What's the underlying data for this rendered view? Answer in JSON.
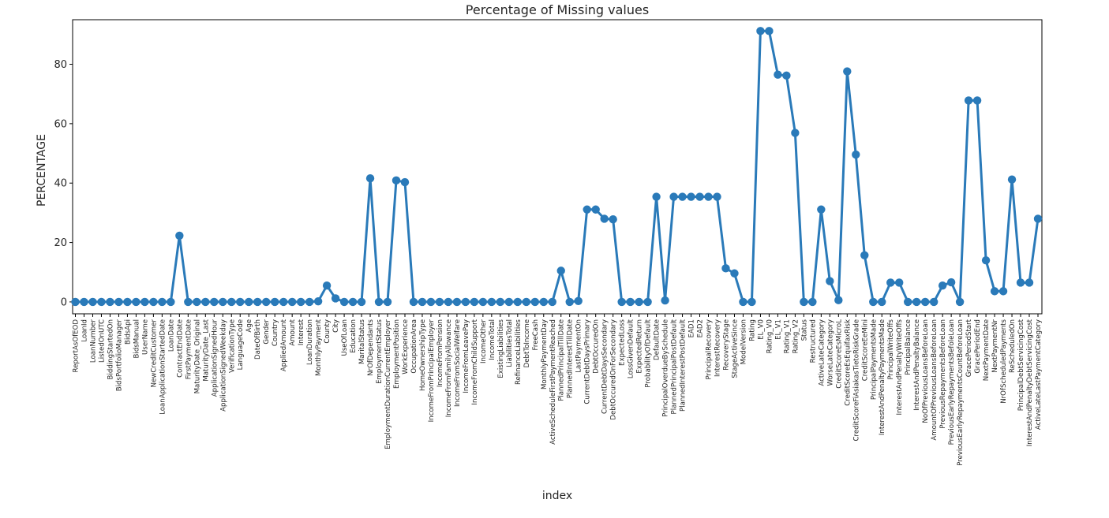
{
  "chart_data": {
    "type": "line",
    "title": "Percentage of Missing values",
    "xlabel": "index",
    "ylabel": "PERCENTAGE",
    "ylim": [
      -4,
      95
    ],
    "yticks": [
      0,
      20,
      40,
      60,
      80
    ],
    "grid": false,
    "markers": true,
    "line_color": "#2a7ab9",
    "categories": [
      "ReportAsOfEOD",
      "LoanId",
      "LoanNumber",
      "ListedOnUTC",
      "BiddingStartedOn",
      "BidsPortfolioManager",
      "BidsApi",
      "BidsManual",
      "UserName",
      "NewCreditCustomer",
      "LoanApplicationStartedDate",
      "LoanDate",
      "ContractEndDate",
      "FirstPaymentDate",
      "MaturityDate_Original",
      "MaturityDate_Last",
      "ApplicationSignedHour",
      "ApplicationSignedWeekday",
      "VerificationType",
      "LanguageCode",
      "Age",
      "DateOfBirth",
      "Gender",
      "Country",
      "AppliedAmount",
      "Amount",
      "Interest",
      "LoanDuration",
      "MonthlyPayment",
      "County",
      "City",
      "UseOfLoan",
      "Education",
      "MaritalStatus",
      "NrOfDependants",
      "EmploymentStatus",
      "EmploymentDurationCurrentEmployer",
      "EmploymentPosition",
      "WorkExperience",
      "OccupationArea",
      "HomeOwnershipType",
      "IncomeFromPrincipalEmployer",
      "IncomeFromPension",
      "IncomeFromFamilyAllowance",
      "IncomeFromSocialWelfare",
      "IncomeFromLeavePay",
      "IncomeFromChildSupport",
      "IncomeOther",
      "IncomeTotal",
      "ExistingLiabilities",
      "LiabilitiesTotal",
      "RefinanceLiabilities",
      "DebtToIncome",
      "FreeCash",
      "MonthlyPaymentDay",
      "ActiveScheduleFirstPaymentReached",
      "PlannedPrincipalTillDate",
      "PlannedInterestTillDate",
      "LastPaymentOn",
      "CurrentDebtDaysPrimary",
      "DebtOccuredOn",
      "CurrentDebtDaysSecondary",
      "DebtOccuredOnForSecondary",
      "ExpectedLoss",
      "LossGivenDefault",
      "ExpectedReturn",
      "ProbabilityOfDefault",
      "DefaultDate",
      "PrincipalOverdueBySchedule",
      "PlannedPrincipalPostDefault",
      "PlannedInterestPostDefault",
      "EAD1",
      "EAD2",
      "PrincipalRecovery",
      "InterestRecovery",
      "RecoveryStage",
      "StageActiveSince",
      "ModelVersion",
      "Rating",
      "EL_V0",
      "Rating_V0",
      "EL_V1",
      "Rating_V1",
      "Rating_V2",
      "Status",
      "Restructured",
      "ActiveLateCategory",
      "WorseLateCategory",
      "CreditScoreEsMicroL",
      "CreditScoreEsEquifaxRisk",
      "CreditScoreFiAsiakasTietoRiskGrade",
      "CreditScoreEeMini",
      "PrincipalPaymentsMade",
      "InterestAndPenaltyPaymentsMade",
      "PrincipalWriteOffs",
      "InterestAndPenaltyWriteOffs",
      "PrincipalBalance",
      "InterestAndPenaltyBalance",
      "NoOfPreviousLoansBeforeLoan",
      "AmountOfPreviousLoansBeforeLoan",
      "PreviousRepaymentsBeforeLoan",
      "PreviousEarlyRepaymentsBefoleLoan",
      "PreviousEarlyRepaymentsCountBeforeLoan",
      "GracePeriodStart",
      "GracePeriodEnd",
      "NextPaymentDate",
      "NextPaymentNr",
      "NrOfScheduledPayments",
      "ReScheduledOn",
      "PrincipalDebtServicingCost",
      "InterestAndPenaltyDebtServicingCost",
      "ActiveLateLastPaymentCategory"
    ],
    "values": [
      0,
      0,
      0,
      0,
      0,
      0,
      0,
      0,
      0,
      0,
      0,
      0,
      22.3,
      0,
      0,
      0,
      0,
      0,
      0,
      0,
      0,
      0,
      0,
      0,
      0,
      0,
      0,
      0,
      0.2,
      5.5,
      1.2,
      0,
      0,
      0,
      41.6,
      0,
      0,
      40.9,
      40.3,
      0,
      0,
      0,
      0,
      0,
      0,
      0,
      0,
      0,
      0,
      0,
      0,
      0,
      0,
      0,
      0,
      0,
      10.5,
      0,
      0.3,
      31.1,
      31.1,
      28,
      27.8,
      0,
      0,
      0,
      0,
      35.4,
      0.5,
      35.4,
      35.4,
      35.4,
      35.4,
      35.4,
      35.4,
      11.3,
      9.6,
      0,
      0,
      91.2,
      91.2,
      76.5,
      76.2,
      56.9,
      0,
      0,
      31.1,
      7,
      0.6,
      77.6,
      49.6,
      15.7,
      0,
      0,
      6.5,
      6.5,
      0,
      0,
      0,
      0,
      5.5,
      6.6,
      0,
      67.8,
      67.8,
      14,
      3.6,
      3.6,
      41.2,
      6.5,
      6.5,
      28
    ]
  }
}
